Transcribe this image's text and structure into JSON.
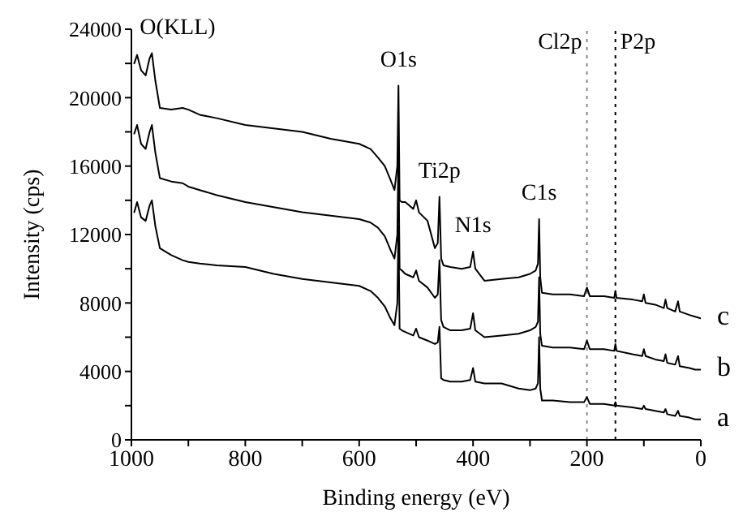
{
  "chart_data": {
    "type": "line",
    "xlabel": "Binding energy (eV)",
    "ylabel": "Intensity (cps)",
    "x": [
      995,
      990,
      983,
      975,
      968,
      964,
      958,
      950,
      930,
      910,
      900,
      880,
      850,
      800,
      750,
      700,
      650,
      600,
      580,
      567,
      555,
      545,
      538,
      533,
      531,
      529,
      525,
      519,
      505,
      500,
      495,
      480,
      467,
      462,
      459,
      456,
      452,
      440,
      420,
      405,
      400,
      396,
      380,
      350,
      320,
      300,
      290,
      286,
      284,
      282,
      279,
      260,
      230,
      205,
      200,
      195,
      170,
      152,
      150,
      148,
      120,
      103,
      100,
      97,
      80,
      65,
      62,
      59,
      45,
      40,
      37,
      20,
      10,
      0
    ],
    "series": [
      {
        "name": "c",
        "color": "#000000",
        "values": [
          22000,
          22500,
          21600,
          21300,
          22300,
          22600,
          21000,
          19400,
          19300,
          19400,
          19300,
          19000,
          18800,
          18400,
          18200,
          18000,
          17600,
          17300,
          17000,
          16500,
          16000,
          15200,
          14600,
          16000,
          20700,
          14000,
          13900,
          13900,
          13500,
          14000,
          13300,
          12800,
          11200,
          11500,
          14200,
          10600,
          10200,
          10100,
          10000,
          10100,
          11000,
          10000,
          9300,
          9400,
          9500,
          9700,
          9900,
          10300,
          12900,
          9500,
          8600,
          8500,
          8500,
          8400,
          8900,
          8400,
          8400,
          8300,
          8700,
          8300,
          8200,
          8100,
          8500,
          8000,
          7900,
          7700,
          8200,
          7700,
          7500,
          8100,
          7500,
          7300,
          7200,
          7100
        ]
      },
      {
        "name": "b",
        "color": "#000000",
        "values": [
          17900,
          18400,
          17300,
          17000,
          18000,
          18400,
          16800,
          15300,
          15100,
          15000,
          14800,
          14600,
          14300,
          13900,
          13600,
          13300,
          13100,
          12900,
          12700,
          12400,
          11900,
          11100,
          10600,
          12000,
          16800,
          10000,
          9900,
          9700,
          9500,
          9900,
          9300,
          8900,
          8300,
          8500,
          10500,
          7000,
          6600,
          6400,
          6400,
          6500,
          7400,
          6400,
          6000,
          6100,
          6200,
          6400,
          6600,
          6900,
          9500,
          6200,
          5500,
          5400,
          5400,
          5300,
          5800,
          5300,
          5300,
          5200,
          5600,
          5200,
          5000,
          4900,
          5300,
          4900,
          4700,
          4600,
          5000,
          4500,
          4400,
          4900,
          4300,
          4200,
          4100,
          4100
        ]
      },
      {
        "name": "a",
        "color": "#000000",
        "values": [
          13300,
          13900,
          13000,
          12800,
          13700,
          14000,
          12500,
          11200,
          10800,
          10500,
          10400,
          10300,
          10200,
          10100,
          9700,
          9400,
          9200,
          9000,
          8700,
          8300,
          7800,
          7100,
          6700,
          8000,
          12500,
          6500,
          6400,
          6300,
          6100,
          6500,
          6000,
          5800,
          5600,
          5700,
          6600,
          3600,
          3500,
          3400,
          3400,
          3500,
          4200,
          3400,
          3300,
          3300,
          3000,
          2900,
          3000,
          3300,
          6000,
          3000,
          2300,
          2300,
          2200,
          2200,
          2500,
          2100,
          2100,
          2000,
          2200,
          2000,
          1900,
          1800,
          2000,
          1800,
          1700,
          1600,
          1800,
          1500,
          1400,
          1700,
          1400,
          1300,
          1200,
          1200
        ]
      }
    ],
    "xlim": [
      1000,
      0
    ],
    "xticks": [
      1000,
      {
        "value": 900,
        "label": null
      },
      800,
      {
        "value": 700,
        "label": null
      },
      600,
      {
        "value": 500,
        "label": null
      },
      400,
      {
        "value": 300,
        "label": null
      },
      200,
      {
        "value": 100,
        "label": null
      },
      0
    ],
    "ylim": [
      0,
      24000
    ],
    "yticks": [
      0,
      {
        "value": 2000,
        "label": null
      },
      4000,
      {
        "value": 6000,
        "label": null
      },
      8000,
      {
        "value": 10000,
        "label": null
      },
      12000,
      {
        "value": 14000,
        "label": null
      },
      16000,
      {
        "value": 18000,
        "label": null
      },
      20000,
      {
        "value": 22000,
        "label": null
      },
      24000
    ],
    "ref_lines": [
      {
        "axis": "x",
        "value": 200,
        "label": "Cl2p",
        "line_style": "dotted",
        "color": "#888888"
      },
      {
        "axis": "x",
        "value": 150,
        "label": "P2p",
        "line_style": "dotted",
        "color": "#000000"
      }
    ],
    "annotations": [
      {
        "text": "O(KLL)",
        "x": 964,
        "y": 22600
      },
      {
        "text": "O1s",
        "x": 531,
        "y": 20700
      },
      {
        "text": "Ti2p",
        "x": 459,
        "y": 14200
      },
      {
        "text": "N1s",
        "x": 400,
        "y": 11000
      },
      {
        "text": "C1s",
        "x": 284,
        "y": 12900
      }
    ],
    "grid": false,
    "legend": false,
    "marker": "none",
    "line_style": "solid"
  }
}
